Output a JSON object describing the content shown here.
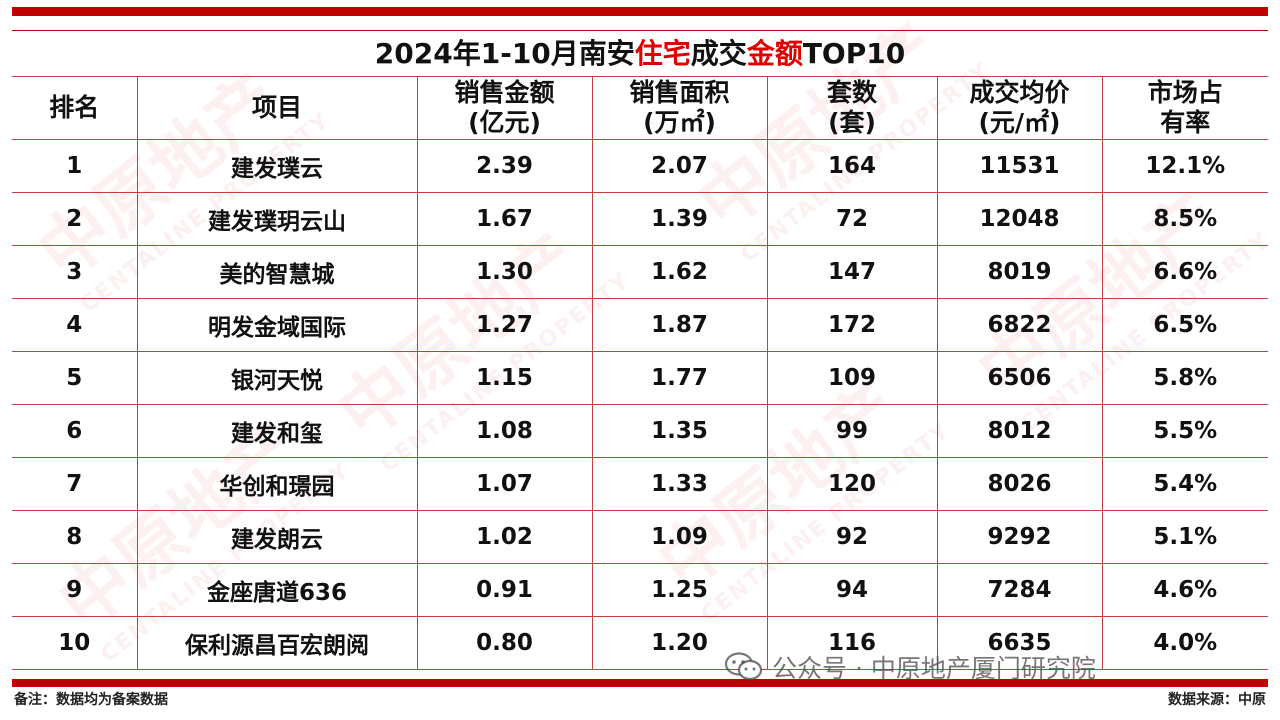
{
  "title": {
    "parts": [
      {
        "text": "2024年1-10月南安",
        "highlight": false
      },
      {
        "text": "住宅",
        "highlight": true
      },
      {
        "text": "成交",
        "highlight": false
      },
      {
        "text": "金额",
        "highlight": true
      },
      {
        "text": "TOP10",
        "highlight": false
      }
    ],
    "highlight_color": "#e00000"
  },
  "table": {
    "headers": [
      {
        "line1": "排名",
        "line2": ""
      },
      {
        "line1": "项目",
        "line2": ""
      },
      {
        "line1": "销售金额",
        "line2": "(亿元)"
      },
      {
        "line1": "销售面积",
        "line2": "(万㎡)"
      },
      {
        "line1": "套数",
        "line2": "(套)"
      },
      {
        "line1": "成交均价",
        "line2": "(元/㎡)"
      },
      {
        "line1": "市场占",
        "line2": "有率"
      }
    ],
    "rows": [
      [
        "1",
        "建发璞云",
        "2.39",
        "2.07",
        "164",
        "11531",
        "12.1%"
      ],
      [
        "2",
        "建发璞玥云山",
        "1.67",
        "1.39",
        "72",
        "12048",
        "8.5%"
      ],
      [
        "3",
        "美的智慧城",
        "1.30",
        "1.62",
        "147",
        "8019",
        "6.6%"
      ],
      [
        "4",
        "明发金域国际",
        "1.27",
        "1.87",
        "172",
        "6822",
        "6.5%"
      ],
      [
        "5",
        "银河天悦",
        "1.15",
        "1.77",
        "109",
        "6506",
        "5.8%"
      ],
      [
        "6",
        "建发和玺",
        "1.08",
        "1.35",
        "99",
        "8012",
        "5.5%"
      ],
      [
        "7",
        "华创和璟园",
        "1.07",
        "1.33",
        "120",
        "8026",
        "5.4%"
      ],
      [
        "8",
        "建发朗云",
        "1.02",
        "1.09",
        "92",
        "9292",
        "5.1%"
      ],
      [
        "9",
        "金座唐道636",
        "0.91",
        "1.25",
        "94",
        "7284",
        "4.6%"
      ],
      [
        "10",
        "保利源昌百宏朗阅",
        "0.80",
        "1.20",
        "116",
        "6635",
        "4.0%"
      ]
    ]
  },
  "watermark": {
    "brand": "中原地产",
    "sub": "CENTALINE PROPERTY",
    "icon": "centaline-logo-icon"
  },
  "wechat_overlay": {
    "text": "公众号 · 中原地产厦门研究院",
    "icon": "wechat-icon"
  },
  "footer": {
    "note": "备注：数据均为备案数据",
    "source": "数据来源：中原"
  },
  "colors": {
    "accent": "#c00000",
    "grid_line": "#c24040"
  }
}
